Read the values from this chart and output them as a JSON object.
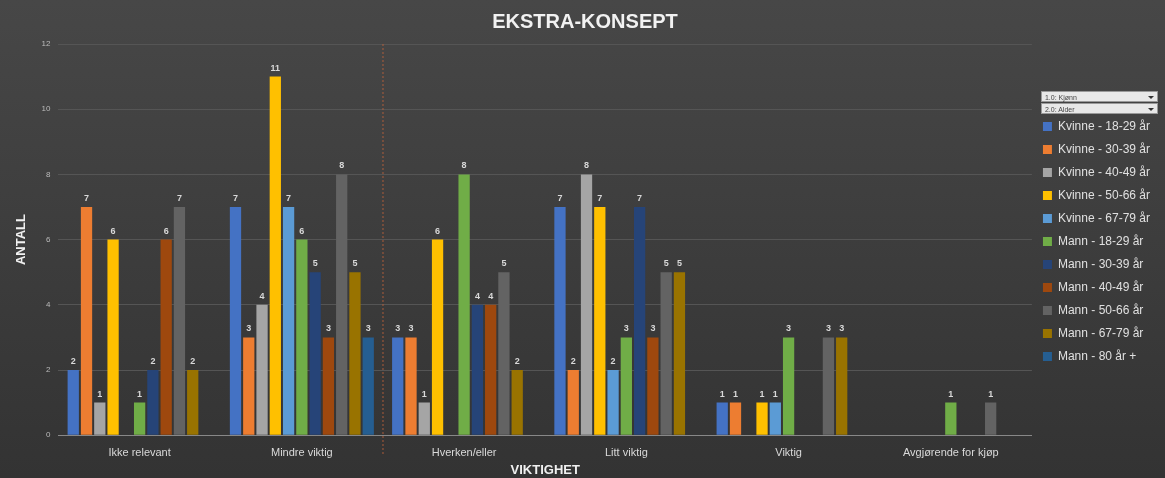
{
  "chart_data": {
    "type": "bar",
    "title": "EKSTRA-KONSEPT",
    "xlabel": "VIKTIGHET",
    "ylabel": "ANTALL",
    "categories": [
      "Ikke relevant",
      "Mindre viktig",
      "Hverken/eller",
      "Litt viktig",
      "Viktig",
      "Avgjørende for kjøp"
    ],
    "series": [
      {
        "name": "Kvinne - 18-29 år",
        "color": "#4472c4",
        "values": [
          2,
          7,
          3,
          7,
          1,
          null
        ]
      },
      {
        "name": "Kvinne - 30-39 år",
        "color": "#ed7d31",
        "values": [
          7,
          3,
          3,
          2,
          1,
          null
        ]
      },
      {
        "name": "Kvinne - 40-49 år",
        "color": "#a5a5a5",
        "values": [
          1,
          4,
          1,
          8,
          null,
          null
        ]
      },
      {
        "name": "Kvinne - 50-66 år",
        "color": "#ffc000",
        "values": [
          6,
          11,
          6,
          7,
          1,
          null
        ]
      },
      {
        "name": "Kvinne - 67-79 år",
        "color": "#5b9bd5",
        "values": [
          null,
          7,
          null,
          2,
          1,
          null
        ]
      },
      {
        "name": "Mann - 18-29 år",
        "color": "#70ad47",
        "values": [
          1,
          6,
          8,
          3,
          3,
          1
        ]
      },
      {
        "name": "Mann - 30-39 år",
        "color": "#264478",
        "values": [
          2,
          5,
          4,
          7,
          null,
          null
        ]
      },
      {
        "name": "Mann - 40-49 år",
        "color": "#9e480e",
        "values": [
          6,
          3,
          4,
          3,
          null,
          null
        ]
      },
      {
        "name": "Mann - 50-66 år",
        "color": "#636363",
        "values": [
          7,
          8,
          5,
          5,
          3,
          1
        ]
      },
      {
        "name": "Mann - 67-79 år",
        "color": "#997300",
        "values": [
          2,
          5,
          2,
          5,
          3,
          null
        ]
      },
      {
        "name": "Mann - 80 år +",
        "color": "#255e91",
        "values": [
          null,
          3,
          null,
          null,
          null,
          null
        ]
      }
    ],
    "ylim": [
      0,
      12
    ],
    "yticks": [
      0,
      2,
      4,
      6,
      8,
      10,
      12
    ],
    "grid": "y",
    "legend": "right",
    "data_labels": true,
    "annotations": [
      "1.0: Kjønn",
      "2.0: Alder"
    ]
  }
}
